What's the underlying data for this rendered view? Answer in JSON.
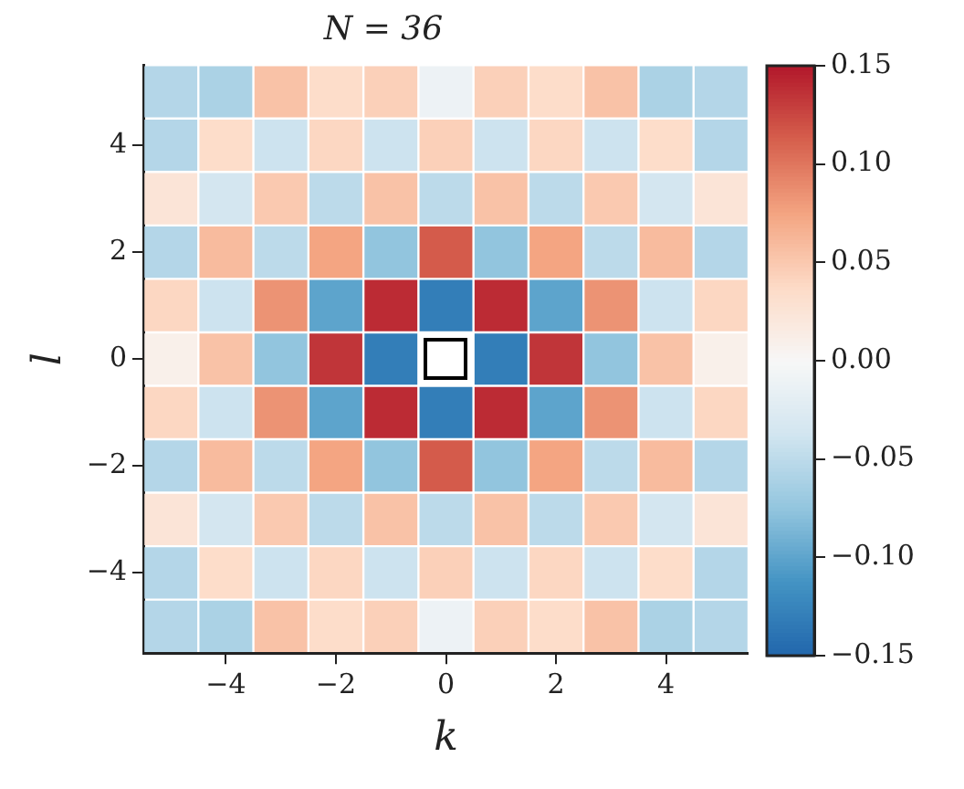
{
  "chart_data": {
    "type": "heatmap",
    "title": "N = 36",
    "xlabel": "k",
    "ylabel": "l",
    "x": [
      -5,
      -4,
      -3,
      -2,
      -1,
      0,
      1,
      2,
      3,
      4,
      5
    ],
    "y": [
      5,
      4,
      3,
      2,
      1,
      0,
      -1,
      -2,
      -3,
      -4,
      -5
    ],
    "xlim": [
      -5.5,
      5.5
    ],
    "ylim": [
      -5.5,
      5.5
    ],
    "xticks": [
      {
        "value": -4,
        "label": "−4"
      },
      {
        "value": -2,
        "label": "−2"
      },
      0,
      2,
      4
    ],
    "yticks": [
      {
        "value": -4,
        "label": "−4"
      },
      {
        "value": -2,
        "label": "−2"
      },
      0,
      2,
      4
    ],
    "cells": [
      [
        -0.055,
        -0.06,
        0.055,
        0.035,
        0.045,
        -0.01,
        0.045,
        0.035,
        0.055,
        -0.06,
        -0.055
      ],
      [
        -0.055,
        0.035,
        -0.04,
        0.04,
        -0.04,
        0.045,
        -0.04,
        0.04,
        -0.04,
        0.035,
        -0.055
      ],
      [
        0.025,
        -0.035,
        0.05,
        -0.05,
        0.055,
        -0.05,
        0.055,
        -0.05,
        0.05,
        -0.035,
        0.025
      ],
      [
        -0.055,
        0.06,
        -0.05,
        0.075,
        -0.075,
        0.115,
        -0.075,
        0.075,
        -0.05,
        0.06,
        -0.055
      ],
      [
        0.04,
        -0.04,
        0.085,
        -0.1,
        0.14,
        -0.13,
        0.14,
        -0.1,
        0.085,
        -0.04,
        0.04
      ],
      [
        0.01,
        0.055,
        -0.075,
        0.135,
        -0.13,
        null,
        -0.13,
        0.135,
        -0.075,
        0.055,
        0.01
      ],
      [
        0.04,
        -0.04,
        0.085,
        -0.1,
        0.14,
        -0.13,
        0.14,
        -0.1,
        0.085,
        -0.04,
        0.04
      ],
      [
        -0.055,
        0.06,
        -0.05,
        0.075,
        -0.075,
        0.115,
        -0.075,
        0.075,
        -0.05,
        0.06,
        -0.055
      ],
      [
        0.025,
        -0.035,
        0.05,
        -0.05,
        0.055,
        -0.05,
        0.055,
        -0.05,
        0.05,
        -0.035,
        0.025
      ],
      [
        -0.055,
        0.035,
        -0.04,
        0.04,
        -0.04,
        0.045,
        -0.04,
        0.04,
        -0.04,
        0.035,
        -0.055
      ],
      [
        -0.055,
        -0.06,
        0.055,
        0.035,
        0.045,
        -0.01,
        0.045,
        0.035,
        0.055,
        -0.06,
        -0.055
      ]
    ],
    "clim": [
      -0.15,
      0.15
    ],
    "cticks": [
      {
        "value": -0.15,
        "label": "−0.15"
      },
      {
        "value": -0.1,
        "label": "−0.10"
      },
      {
        "value": -0.05,
        "label": "−0.05"
      },
      {
        "value": 0,
        "label": "0.00"
      },
      {
        "value": 0.05,
        "label": "0.05"
      },
      {
        "value": 0.1,
        "label": "0.10"
      },
      {
        "value": 0.15,
        "label": "0.15"
      }
    ]
  }
}
